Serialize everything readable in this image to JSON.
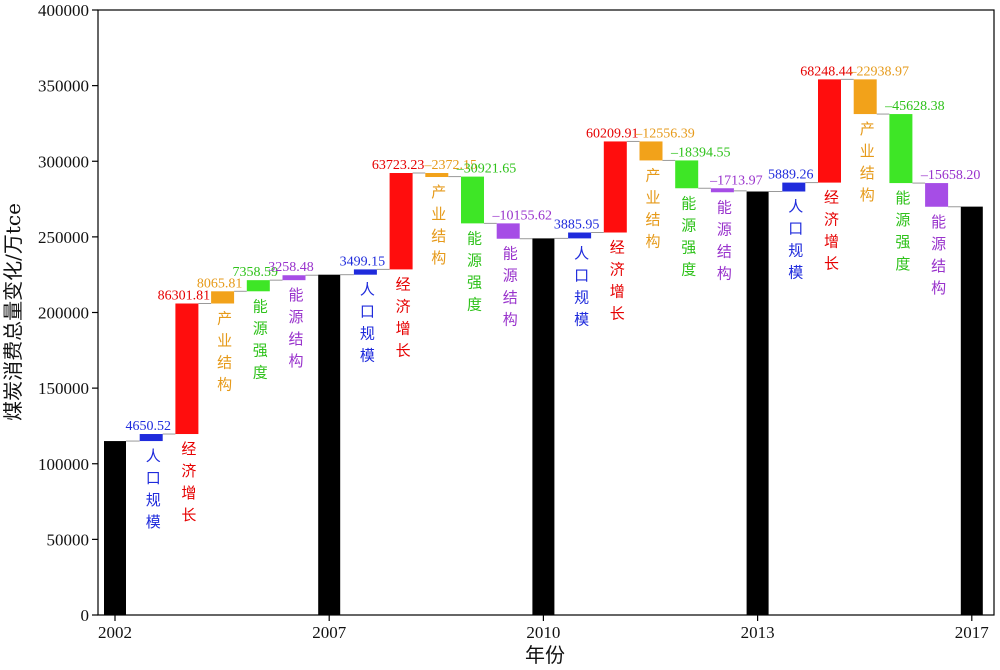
{
  "chart_data": {
    "type": "bar",
    "subtype": "waterfall",
    "title": "",
    "xlabel": "年份",
    "ylabel": "煤炭消费总量变化/万tce",
    "ylim": [
      0,
      400000
    ],
    "y_ticks": [
      "0",
      "50000",
      "100000",
      "150000",
      "200000",
      "250000",
      "300000",
      "350000",
      "400000"
    ],
    "x_ticks": [
      "2002",
      "2007",
      "2010",
      "2013",
      "2017"
    ],
    "grid": false,
    "colors": {
      "total": "#000000",
      "人口规模": "#1f2bdc",
      "经济增长": "#ff0d0d",
      "产业结构": "#f2a21a",
      "能源强度": "#3ee626",
      "能源结构": "#a64de6"
    },
    "label_colors": {
      "人口规模": "#1f2bdc",
      "经济增长": "#e60000",
      "产业结构": "#e69a1a",
      "能源强度": "#2ec21a",
      "能源结构": "#9933cc"
    },
    "totals": [
      {
        "year": "2002",
        "value": 115000
      },
      {
        "year": "2007",
        "value": 225000
      },
      {
        "year": "2010",
        "value": 249000
      },
      {
        "year": "2013",
        "value": 280000
      },
      {
        "year": "2017",
        "value": 270000
      }
    ],
    "periods": [
      {
        "from": "2002",
        "effects": [
          {
            "factor": "人口规模",
            "value": 4650.52,
            "label": "4650.52"
          },
          {
            "factor": "经济增长",
            "value": 86301.81,
            "label": "86301.81"
          },
          {
            "factor": "产业结构",
            "value": 8065.81,
            "label": "8065.81"
          },
          {
            "factor": "能源强度",
            "value": 7358.59,
            "label": "7358.59"
          },
          {
            "factor": "能源结构",
            "value": 3258.48,
            "label": "3258.48"
          }
        ]
      },
      {
        "from": "2007",
        "effects": [
          {
            "factor": "人口规模",
            "value": 3499.15,
            "label": "3499.15"
          },
          {
            "factor": "经济增长",
            "value": 63723.23,
            "label": "63723.23"
          },
          {
            "factor": "产业结构",
            "value": -2372.15,
            "label": "–2372.15"
          },
          {
            "factor": "能源强度",
            "value": -30921.65,
            "label": "–30921.65"
          },
          {
            "factor": "能源结构",
            "value": -10155.62,
            "label": "–10155.62"
          }
        ]
      },
      {
        "from": "2010",
        "effects": [
          {
            "factor": "人口规模",
            "value": 3885.95,
            "label": "3885.95"
          },
          {
            "factor": "经济增长",
            "value": 60209.91,
            "label": "60209.91"
          },
          {
            "factor": "产业结构",
            "value": -12556.39,
            "label": "–12556.39"
          },
          {
            "factor": "能源强度",
            "value": -18394.55,
            "label": "–18394.55"
          },
          {
            "factor": "能源结构",
            "value": -1713.97,
            "label": "–1713.97"
          }
        ]
      },
      {
        "from": "2013",
        "effects": [
          {
            "factor": "人口规模",
            "value": 5889.26,
            "label": "5889.26"
          },
          {
            "factor": "经济增长",
            "value": 68248.44,
            "label": "68248.44"
          },
          {
            "factor": "产业结构",
            "value": -22938.97,
            "label": "–22938.97"
          },
          {
            "factor": "能源强度",
            "value": -45628.38,
            "label": "–45628.38"
          },
          {
            "factor": "能源结构",
            "value": -15658.2,
            "label": "–15658.20"
          }
        ]
      }
    ]
  }
}
